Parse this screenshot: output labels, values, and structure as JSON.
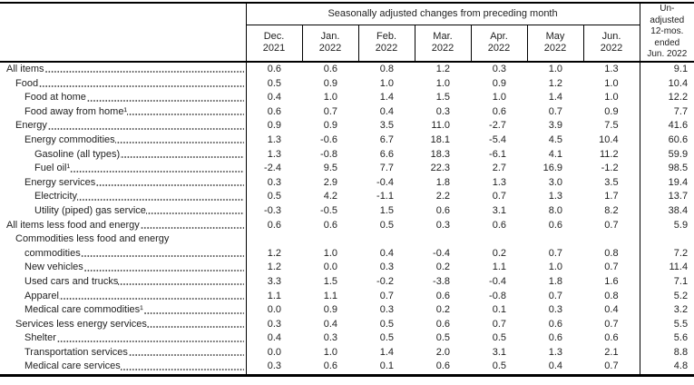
{
  "table": {
    "group_header": "Seasonally adjusted changes from preceding month",
    "unadjusted_header_lines": [
      "Un-",
      "adjusted",
      "12-mos.",
      "ended",
      "Jun. 2022"
    ],
    "months": [
      {
        "name": "Dec.",
        "year": "2021"
      },
      {
        "name": "Jan.",
        "year": "2022"
      },
      {
        "name": "Feb.",
        "year": "2022"
      },
      {
        "name": "Mar.",
        "year": "2022"
      },
      {
        "name": "Apr.",
        "year": "2022"
      },
      {
        "name": "May",
        "year": "2022"
      },
      {
        "name": "Jun.",
        "year": "2022"
      }
    ],
    "rows": [
      {
        "label": "All items",
        "indent": 0,
        "values": [
          "0.6",
          "0.6",
          "0.8",
          "1.2",
          "0.3",
          "1.0",
          "1.3",
          "9.1"
        ]
      },
      {
        "label": "Food",
        "indent": 1,
        "values": [
          "0.5",
          "0.9",
          "1.0",
          "1.0",
          "0.9",
          "1.2",
          "1.0",
          "10.4"
        ]
      },
      {
        "label": "Food at home",
        "indent": 2,
        "values": [
          "0.4",
          "1.0",
          "1.4",
          "1.5",
          "1.0",
          "1.4",
          "1.0",
          "12.2"
        ]
      },
      {
        "label": "Food away from home¹",
        "indent": 2,
        "values": [
          "0.6",
          "0.7",
          "0.4",
          "0.3",
          "0.6",
          "0.7",
          "0.9",
          "7.7"
        ]
      },
      {
        "label": "Energy",
        "indent": 1,
        "values": [
          "0.9",
          "0.9",
          "3.5",
          "11.0",
          "-2.7",
          "3.9",
          "7.5",
          "41.6"
        ]
      },
      {
        "label": "Energy commodities",
        "indent": 2,
        "values": [
          "1.3",
          "-0.6",
          "6.7",
          "18.1",
          "-5.4",
          "4.5",
          "10.4",
          "60.6"
        ]
      },
      {
        "label": "Gasoline (all types)",
        "indent": 3,
        "values": [
          "1.3",
          "-0.8",
          "6.6",
          "18.3",
          "-6.1",
          "4.1",
          "11.2",
          "59.9"
        ]
      },
      {
        "label": "Fuel oil¹",
        "indent": 3,
        "values": [
          "-2.4",
          "9.5",
          "7.7",
          "22.3",
          "2.7",
          "16.9",
          "-1.2",
          "98.5"
        ]
      },
      {
        "label": "Energy services",
        "indent": 2,
        "values": [
          "0.3",
          "2.9",
          "-0.4",
          "1.8",
          "1.3",
          "3.0",
          "3.5",
          "19.4"
        ]
      },
      {
        "label": "Electricity",
        "indent": 3,
        "values": [
          "0.5",
          "4.2",
          "-1.1",
          "2.2",
          "0.7",
          "1.3",
          "1.7",
          "13.7"
        ]
      },
      {
        "label": "Utility (piped) gas service",
        "indent": 3,
        "values": [
          "-0.3",
          "-0.5",
          "1.5",
          "0.6",
          "3.1",
          "8.0",
          "8.2",
          "38.4"
        ]
      },
      {
        "label": "All items less food and energy",
        "indent": 0,
        "values": [
          "0.6",
          "0.6",
          "0.5",
          "0.3",
          "0.6",
          "0.6",
          "0.7",
          "5.9"
        ]
      },
      {
        "label": "Commodities less food and energy commodities",
        "label_lines": [
          "Commodities less food and energy",
          "commodities"
        ],
        "indent": 1,
        "values": [
          "1.2",
          "1.0",
          "0.4",
          "-0.4",
          "0.2",
          "0.7",
          "0.8",
          "7.2"
        ]
      },
      {
        "label": "New vehicles",
        "indent": 2,
        "values": [
          "1.2",
          "0.0",
          "0.3",
          "0.2",
          "1.1",
          "1.0",
          "0.7",
          "11.4"
        ]
      },
      {
        "label": "Used cars and trucks",
        "indent": 2,
        "values": [
          "3.3",
          "1.5",
          "-0.2",
          "-3.8",
          "-0.4",
          "1.8",
          "1.6",
          "7.1"
        ]
      },
      {
        "label": "Apparel",
        "indent": 2,
        "values": [
          "1.1",
          "1.1",
          "0.7",
          "0.6",
          "-0.8",
          "0.7",
          "0.8",
          "5.2"
        ]
      },
      {
        "label": "Medical care commodities¹",
        "indent": 2,
        "values": [
          "0.0",
          "0.9",
          "0.3",
          "0.2",
          "0.1",
          "0.3",
          "0.4",
          "3.2"
        ]
      },
      {
        "label": "Services less energy services",
        "indent": 1,
        "values": [
          "0.3",
          "0.4",
          "0.5",
          "0.6",
          "0.7",
          "0.6",
          "0.7",
          "5.5"
        ]
      },
      {
        "label": "Shelter",
        "indent": 2,
        "values": [
          "0.4",
          "0.3",
          "0.5",
          "0.5",
          "0.5",
          "0.6",
          "0.6",
          "5.6"
        ]
      },
      {
        "label": "Transportation services",
        "indent": 2,
        "values": [
          "0.0",
          "1.0",
          "1.4",
          "2.0",
          "3.1",
          "1.3",
          "2.1",
          "8.8"
        ]
      },
      {
        "label": "Medical care services",
        "indent": 2,
        "values": [
          "0.3",
          "0.6",
          "0.1",
          "0.6",
          "0.5",
          "0.4",
          "0.7",
          "4.8"
        ]
      }
    ],
    "colors": {
      "background": "#ffffff",
      "text": "#1f1f1f",
      "border": "#000000",
      "leader_dot": "#3a3a3a"
    }
  }
}
